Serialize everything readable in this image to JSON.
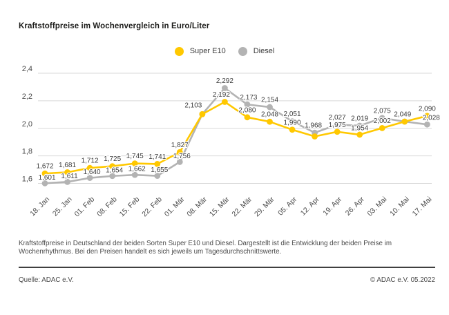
{
  "title": "Kraftstoffpreise im Wochenvergleich in Euro/Liter",
  "legend": {
    "items": [
      {
        "label": "Super E10",
        "color": "#ffc800"
      },
      {
        "label": "Diesel",
        "color": "#b3b3b3"
      }
    ]
  },
  "chart_data": {
    "type": "line",
    "title": "Kraftstoffpreise im Wochenvergleich in Euro/Liter",
    "unit": "Euro/Liter",
    "x": [
      "18. Jan",
      "25. Jan",
      "01. Feb",
      "08. Feb",
      "15. Feb",
      "22. Feb",
      "01. Mär",
      "08. Mär",
      "15. Mär",
      "22. Mär",
      "29. Mär",
      "05. Apr",
      "12. Apr",
      "19. Apr",
      "26. Apr",
      "03. Mai",
      "10. Mai",
      "17. Mai"
    ],
    "series": [
      {
        "name": "Super E10",
        "color": "#ffc800",
        "values": [
          1.672,
          1.681,
          1.712,
          1.725,
          1.745,
          1.741,
          1.827,
          2.103,
          2.192,
          2.08,
          2.048,
          1.99,
          1.941,
          1.975,
          1.954,
          2.002,
          2.049,
          2.09
        ],
        "point_labels": [
          "1,672",
          "1,681",
          "1,712",
          "1,725",
          "1,745",
          "1,741",
          "1,827",
          "2,103",
          "2,192",
          "2,080",
          "2,048",
          "1,990",
          null,
          "1,975",
          "1,954",
          "2,002",
          null,
          "2,090"
        ]
      },
      {
        "name": "Diesel",
        "color": "#b3b3b3",
        "values": [
          1.601,
          1.611,
          1.64,
          1.654,
          1.662,
          1.655,
          1.756,
          2.103,
          2.292,
          2.173,
          2.154,
          2.051,
          1.968,
          2.027,
          2.019,
          2.075,
          2.049,
          2.028
        ],
        "point_labels": [
          "1,601",
          "1,611",
          "1,640",
          "1,654",
          "1,662",
          "1,655",
          "1,756",
          null,
          "2,292",
          "2,173",
          "2,154",
          "2,051",
          "1,968",
          "2,027",
          "2,019",
          "2,075",
          "2,049",
          "2,028"
        ]
      }
    ],
    "yticks": [
      "2,4",
      "2,2",
      "2,0",
      "1,8",
      "1,6"
    ],
    "ylim": [
      1.6,
      2.4
    ],
    "grid": true,
    "legend_position": "top-center"
  },
  "footnote": "Kraftstoffpreise in Deutschland der beiden Sorten Super E10 und Diesel. Dargestellt ist die Entwicklung der beiden Preise im Wochenrhythmus. Bei den Preisen handelt es sich jeweils um Tagesdurchschnittswerte.",
  "source": "Quelle: ADAC e.V.",
  "copyright": "© ADAC e.V. 05.2022"
}
